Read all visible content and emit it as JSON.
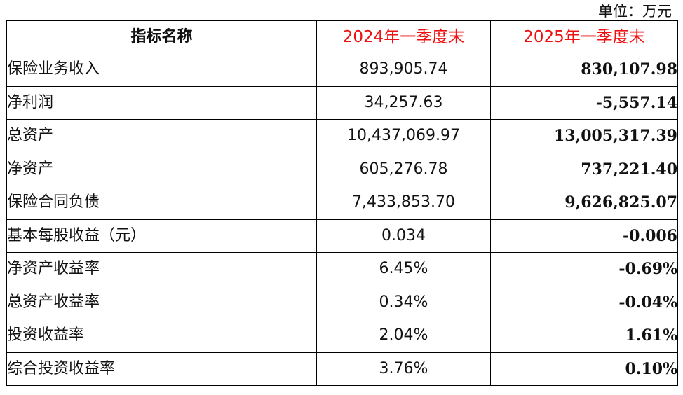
{
  "unit": "单位：万元",
  "table": {
    "headers": [
      "指标名称",
      "2024年一季度末",
      "2025年一季度末"
    ],
    "rows": [
      {
        "name": "保险业务收入",
        "v2024": "893,905.74",
        "v2025": "830,107.98"
      },
      {
        "name": "净利润",
        "v2024": "34,257.63",
        "v2025": "-5,557.14"
      },
      {
        "name": "总资产",
        "v2024": "10,437,069.97",
        "v2025": "13,005,317.39"
      },
      {
        "name": "净资产",
        "v2024": "605,276.78",
        "v2025": "737,221.40"
      },
      {
        "name": "保险合同负债",
        "v2024": "7,433,853.70",
        "v2025": "9,626,825.07"
      },
      {
        "name": "基本每股收益（元）",
        "v2024": "0.034",
        "v2025": "-0.006"
      },
      {
        "name": "净资产收益率",
        "v2024": "6.45%",
        "v2025": "-0.69%"
      },
      {
        "name": "总资产收益率",
        "v2024": "0.34%",
        "v2025": "-0.04%"
      },
      {
        "name": "投资收益率",
        "v2024": "2.04%",
        "v2025": "1.61%"
      },
      {
        "name": "综合投资收益率",
        "v2024": "3.76%",
        "v2025": "0.10%"
      }
    ]
  },
  "colors": {
    "header_year_text": "#ee1111",
    "border": "#000000",
    "text": "#111111"
  }
}
